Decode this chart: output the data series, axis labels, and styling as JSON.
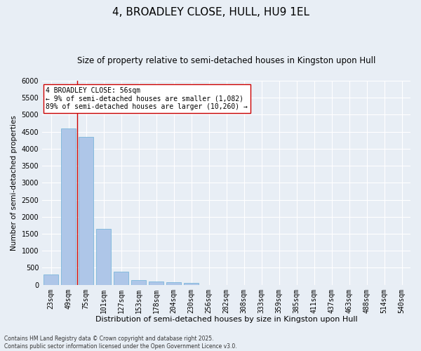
{
  "title": "4, BROADLEY CLOSE, HULL, HU9 1EL",
  "subtitle": "Size of property relative to semi-detached houses in Kingston upon Hull",
  "xlabel": "Distribution of semi-detached houses by size in Kingston upon Hull",
  "ylabel": "Number of semi-detached properties",
  "categories": [
    "23sqm",
    "49sqm",
    "75sqm",
    "101sqm",
    "127sqm",
    "153sqm",
    "178sqm",
    "204sqm",
    "230sqm",
    "256sqm",
    "282sqm",
    "308sqm",
    "333sqm",
    "359sqm",
    "385sqm",
    "411sqm",
    "437sqm",
    "463sqm",
    "488sqm",
    "514sqm",
    "540sqm"
  ],
  "values": [
    310,
    4600,
    4350,
    1640,
    380,
    130,
    100,
    80,
    60,
    0,
    0,
    0,
    0,
    0,
    0,
    0,
    0,
    0,
    0,
    0,
    0
  ],
  "bar_color": "#aec6e8",
  "bar_edge_color": "#6aaed6",
  "bg_color": "#e8eef5",
  "grid_color": "#ffffff",
  "vline_color": "#cc0000",
  "annotation_text": "4 BROADLEY CLOSE: 56sqm\n← 9% of semi-detached houses are smaller (1,082)\n89% of semi-detached houses are larger (10,260) →",
  "annotation_box_color": "#ffffff",
  "annotation_box_edge": "#cc0000",
  "ylim": [
    0,
    6000
  ],
  "yticks": [
    0,
    500,
    1000,
    1500,
    2000,
    2500,
    3000,
    3500,
    4000,
    4500,
    5000,
    5500,
    6000
  ],
  "footnote": "Contains HM Land Registry data © Crown copyright and database right 2025.\nContains public sector information licensed under the Open Government Licence v3.0.",
  "title_fontsize": 11,
  "subtitle_fontsize": 8.5,
  "xlabel_fontsize": 8,
  "ylabel_fontsize": 7.5,
  "tick_fontsize": 7,
  "footnote_fontsize": 5.5,
  "annotation_fontsize": 7
}
